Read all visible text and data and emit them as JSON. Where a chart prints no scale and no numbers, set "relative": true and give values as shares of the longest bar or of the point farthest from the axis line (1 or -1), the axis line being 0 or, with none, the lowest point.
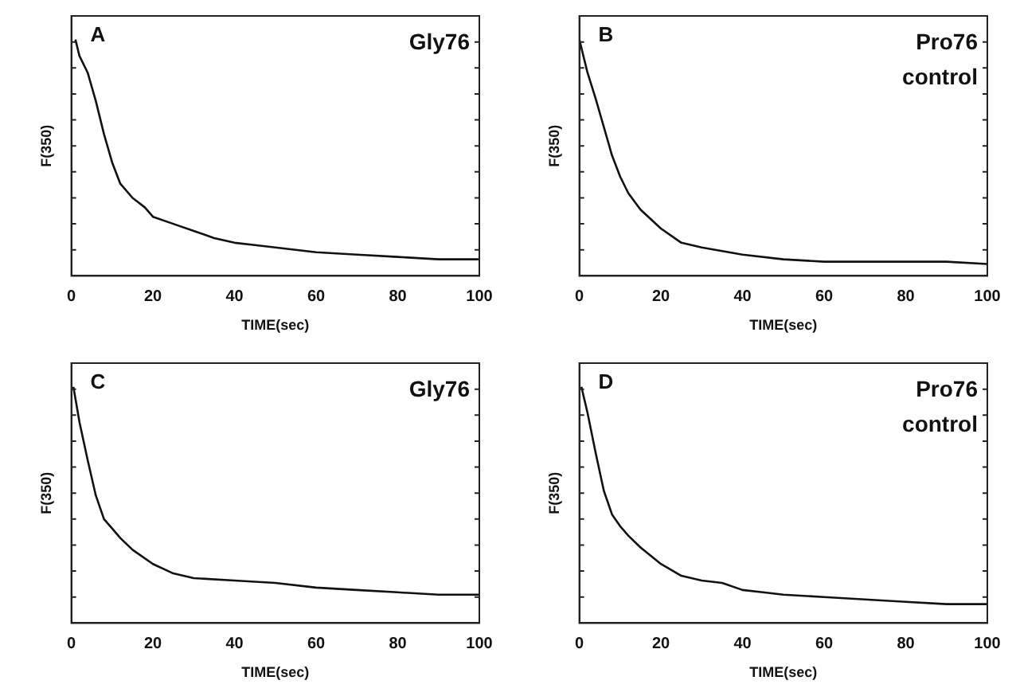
{
  "chart_data": [
    {
      "type": "line",
      "xlabel": "TIME(sec)",
      "ylabel": "F(350)",
      "annotations": [
        "A",
        "Gly76"
      ],
      "relative": true,
      "xlim": [
        0,
        100
      ],
      "xticks": [
        0,
        20,
        40,
        60,
        80,
        100
      ],
      "grid": false,
      "legend": false,
      "marker": "none",
      "line_style": "solid",
      "series": [
        {
          "color": "#111111",
          "x": [
            1,
            2,
            4,
            6,
            8,
            10,
            12,
            15,
            18,
            20,
            25,
            30,
            35,
            40,
            45,
            50,
            60,
            70,
            80,
            90,
            100
          ],
          "values": [
            1,
            0.93,
            0.86,
            0.74,
            0.6,
            0.48,
            0.39,
            0.33,
            0.29,
            0.25,
            0.22,
            0.19,
            0.16,
            0.14,
            0.13,
            0.12,
            0.1,
            0.09,
            0.08,
            0.07,
            0.07
          ]
        }
      ]
    },
    {
      "type": "line",
      "xlabel": "TIME(sec)",
      "ylabel": "F(350)",
      "annotations": [
        "B",
        "Pro76",
        "control"
      ],
      "relative": true,
      "xlim": [
        0,
        100
      ],
      "xticks": [
        0,
        20,
        40,
        60,
        80,
        100
      ],
      "grid": false,
      "legend": false,
      "marker": "none",
      "line_style": "solid",
      "series": [
        {
          "color": "#111111",
          "x": [
            0,
            2,
            4,
            6,
            8,
            10,
            12,
            15,
            20,
            25,
            30,
            40,
            50,
            60,
            70,
            80,
            90,
            100
          ],
          "values": [
            1,
            0.86,
            0.75,
            0.63,
            0.51,
            0.42,
            0.35,
            0.28,
            0.2,
            0.14,
            0.12,
            0.09,
            0.07,
            0.06,
            0.06,
            0.06,
            0.06,
            0.05
          ]
        }
      ]
    },
    {
      "type": "line",
      "xlabel": "TIME(sec)",
      "ylabel": "F(350)",
      "annotations": [
        "C",
        "Gly76"
      ],
      "relative": true,
      "xlim": [
        0,
        100
      ],
      "xticks": [
        0,
        20,
        40,
        60,
        80,
        100
      ],
      "grid": false,
      "legend": false,
      "marker": "none",
      "line_style": "solid",
      "series": [
        {
          "color": "#111111",
          "x": [
            0.5,
            2,
            4,
            6,
            8,
            10,
            12,
            15,
            20,
            25,
            30,
            40,
            50,
            60,
            70,
            80,
            90,
            100
          ],
          "values": [
            1,
            0.85,
            0.69,
            0.54,
            0.44,
            0.4,
            0.36,
            0.31,
            0.25,
            0.21,
            0.19,
            0.18,
            0.17,
            0.15,
            0.14,
            0.13,
            0.12,
            0.12
          ]
        }
      ]
    },
    {
      "type": "line",
      "xlabel": "TIME(sec)",
      "ylabel": "F(350)",
      "annotations": [
        "D",
        "Pro76",
        "control"
      ],
      "relative": true,
      "xlim": [
        0,
        100
      ],
      "xticks": [
        0,
        20,
        40,
        60,
        80,
        100
      ],
      "grid": false,
      "legend": false,
      "marker": "none",
      "line_style": "solid",
      "series": [
        {
          "color": "#111111",
          "x": [
            0.5,
            2,
            4,
            6,
            8,
            10,
            12,
            15,
            20,
            25,
            30,
            35,
            40,
            45,
            50,
            60,
            70,
            80,
            90,
            100
          ],
          "values": [
            1,
            0.89,
            0.72,
            0.56,
            0.46,
            0.41,
            0.37,
            0.32,
            0.25,
            0.2,
            0.18,
            0.17,
            0.14,
            0.13,
            0.12,
            0.11,
            0.1,
            0.09,
            0.08,
            0.08
          ]
        }
      ]
    }
  ]
}
